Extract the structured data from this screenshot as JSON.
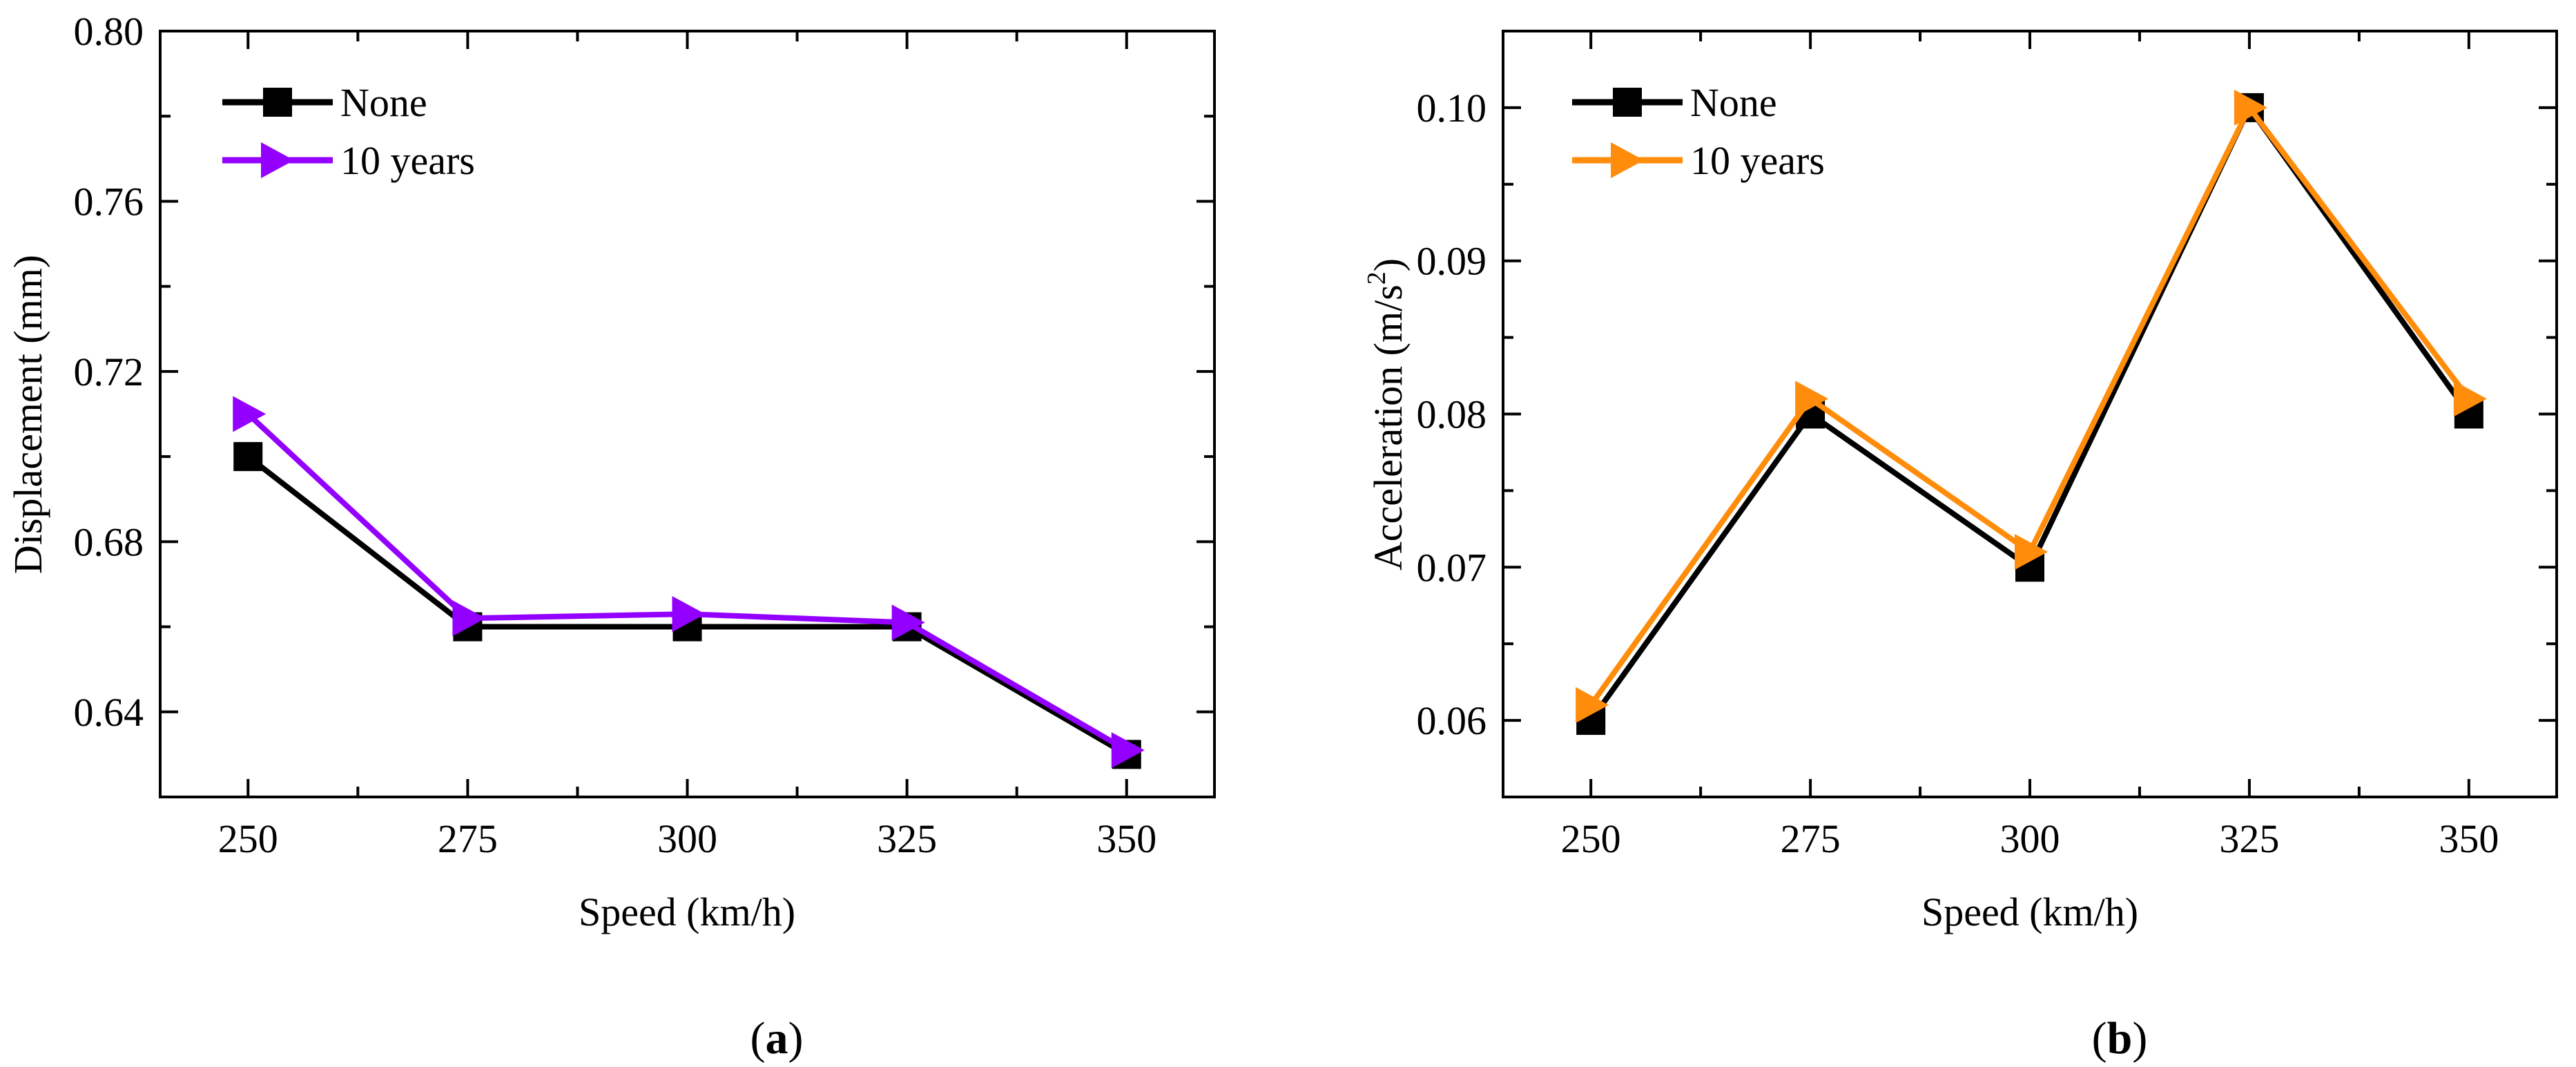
{
  "figure": {
    "panel_labels": [
      {
        "open": "(",
        "letter": "a",
        "close": ")"
      },
      {
        "open": "(",
        "letter": "b",
        "close": ")"
      }
    ]
  },
  "colors": {
    "none": "#000000",
    "ten_years_a": "#9400ff",
    "ten_years_b": "#ff8c0a"
  },
  "chart_data": [
    {
      "type": "line",
      "panel": "a",
      "xlabel": "Speed (km/h)",
      "ylabel": "Displacement (mm)",
      "x": [
        250,
        275,
        300,
        325,
        350
      ],
      "x_ticks": [
        "250",
        "275",
        "300",
        "325",
        "350"
      ],
      "xlim": [
        240,
        360
      ],
      "ylim": [
        0.62,
        0.8
      ],
      "y_ticks": [
        "0.64",
        "0.68",
        "0.72",
        "0.76",
        "0.80"
      ],
      "y_tick_values": [
        0.64,
        0.68,
        0.72,
        0.76,
        0.8
      ],
      "legend_position": "top-left",
      "series": [
        {
          "name": "None",
          "marker": "square",
          "color_key": "none",
          "values": [
            0.7,
            0.66,
            0.66,
            0.66,
            0.63
          ]
        },
        {
          "name": "10 years",
          "marker": "triangle-right",
          "color_key": "ten_years_a",
          "values": [
            0.71,
            0.662,
            0.663,
            0.661,
            0.631
          ]
        }
      ]
    },
    {
      "type": "line",
      "panel": "b",
      "xlabel": "Speed (km/h)",
      "ylabel": {
        "main": "Acceleration (m/s",
        "sup": "2",
        "end": ")"
      },
      "x": [
        250,
        275,
        300,
        325,
        350
      ],
      "x_ticks": [
        "250",
        "275",
        "300",
        "325",
        "350"
      ],
      "xlim": [
        240,
        360
      ],
      "ylim": [
        0.055,
        0.105
      ],
      "y_ticks": [
        "0.06",
        "0.07",
        "0.08",
        "0.09",
        "0.10"
      ],
      "y_tick_values": [
        0.06,
        0.07,
        0.08,
        0.09,
        0.1
      ],
      "legend_position": "top-left",
      "series": [
        {
          "name": "None",
          "marker": "square",
          "color_key": "none",
          "values": [
            0.06,
            0.08,
            0.07,
            0.1,
            0.08
          ]
        },
        {
          "name": "10 years",
          "marker": "triangle-right",
          "color_key": "ten_years_b",
          "values": [
            0.061,
            0.081,
            0.071,
            0.1,
            0.081
          ]
        }
      ]
    }
  ]
}
